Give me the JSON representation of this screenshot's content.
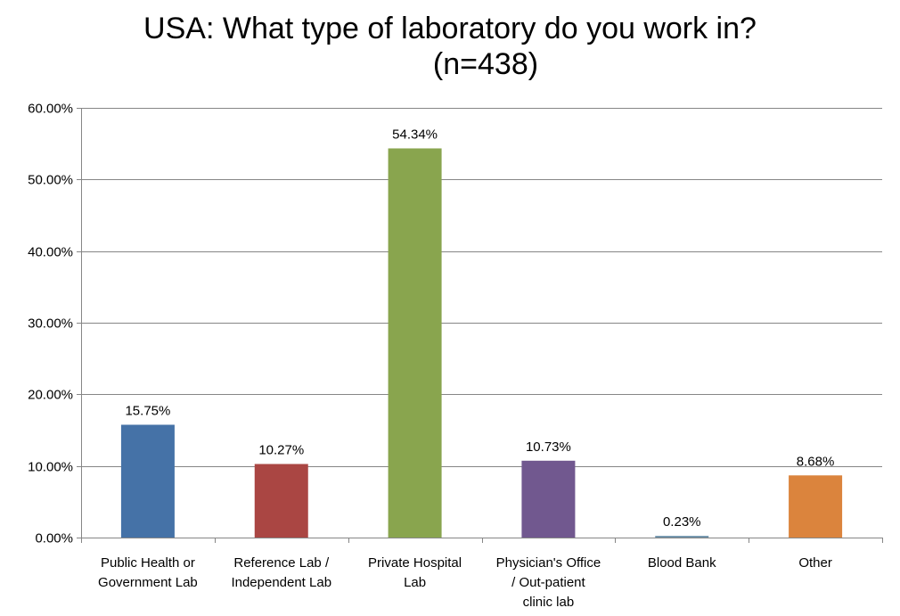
{
  "chart_data": {
    "type": "bar",
    "title": "USA: What type of laboratory do you work in?",
    "subtitle": "(n=438)",
    "categories": [
      [
        "Public Health or",
        "Government Lab"
      ],
      [
        "Reference Lab /",
        "Independent Lab"
      ],
      [
        "Private Hospital",
        "Lab"
      ],
      [
        "Physician's Office",
        "/ Out-patient",
        "clinic lab"
      ],
      [
        "Blood Bank"
      ],
      [
        "Other"
      ]
    ],
    "values": [
      15.75,
      10.27,
      54.34,
      10.73,
      0.23,
      8.68
    ],
    "data_labels": [
      "15.75%",
      "10.27%",
      "54.34%",
      "10.73%",
      "0.23%",
      "8.68%"
    ],
    "colors": [
      "#4572A7",
      "#AA4643",
      "#89A54E",
      "#71588F",
      "#6A8FA8",
      "#DB843D"
    ],
    "ylim": [
      0,
      60
    ],
    "yticks": [
      "0.00%",
      "10.00%",
      "20.00%",
      "30.00%",
      "40.00%",
      "50.00%",
      "60.00%"
    ],
    "grid": true,
    "xlabel": "",
    "ylabel": ""
  }
}
